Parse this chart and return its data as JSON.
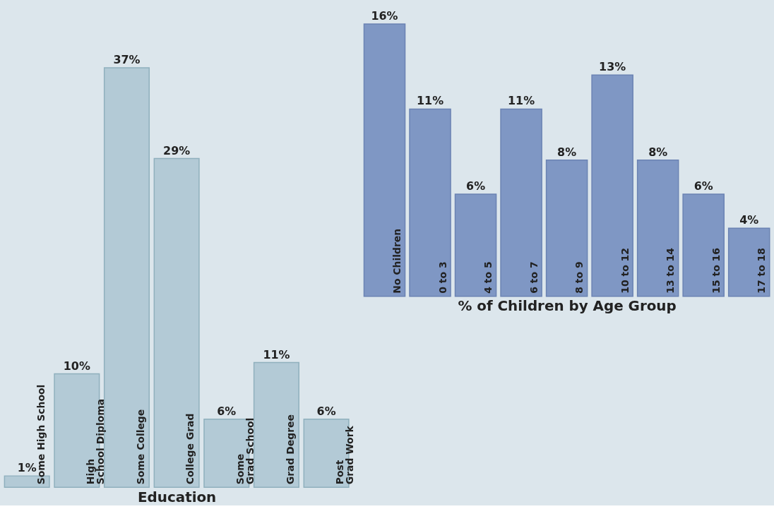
{
  "chart_data": [
    {
      "type": "bar",
      "xlabel": "Education",
      "categories": [
        "Some High School",
        "High\nSchool Diploma",
        "Some College",
        "College Grad",
        "Some\nGrad School",
        "Grad Degree",
        "Post\nGrad Work"
      ],
      "values": [
        1,
        10,
        37,
        29,
        6,
        11,
        6
      ],
      "value_labels": [
        "1%",
        "10%",
        "37%",
        "29%",
        "6%",
        "11%",
        "6%"
      ],
      "color": "#b3cad6",
      "tick_labels": false
    },
    {
      "type": "bar",
      "xlabel": "% of Children by Age Group",
      "categories": [
        "No Children",
        "0 to 3",
        "4 to 5",
        "6 to 7",
        "8 to 9",
        "10 to 12",
        "13 to 14",
        "15 to 16",
        "17 to 18"
      ],
      "values": [
        16,
        11,
        6,
        11,
        8,
        13,
        8,
        6,
        4
      ],
      "value_labels": [
        "16%",
        "11%",
        "6%",
        "11%",
        "8%",
        "13%",
        "8%",
        "6%",
        "4%"
      ],
      "color": "#7f97c4",
      "tick_labels": false
    }
  ]
}
